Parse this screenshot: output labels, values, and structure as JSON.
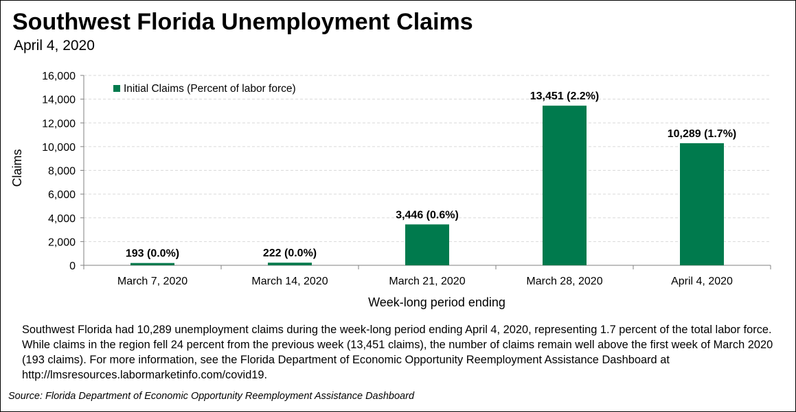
{
  "header": {
    "title": "Southwest Florida Unemployment Claims",
    "subtitle": "April 4, 2020"
  },
  "chart_data": {
    "type": "bar",
    "categories": [
      "March 7, 2020",
      "March 14, 2020",
      "March 21, 2020",
      "March 28, 2020",
      "April 4, 2020"
    ],
    "series": [
      {
        "name": "Initial Claims (Percent of labor force)",
        "values": [
          193,
          222,
          3446,
          13451,
          10289
        ],
        "data_labels": [
          "193 (0.0%)",
          "222 (0.0%)",
          "3,446 (0.6%)",
          "13,451 (2.2%)",
          "10,289 (1.7%)"
        ],
        "color": "#007a4d"
      }
    ],
    "xlabel": "Week-long period ending",
    "ylabel": "Claims",
    "ylim": [
      0,
      16000
    ],
    "yticks": [
      0,
      2000,
      4000,
      6000,
      8000,
      10000,
      12000,
      14000,
      16000
    ],
    "ytick_labels": [
      "0",
      "2,000",
      "4,000",
      "6,000",
      "8,000",
      "10,000",
      "12,000",
      "14,000",
      "16,000"
    ],
    "legend": "top-left",
    "grid": true
  },
  "description": "Southwest Florida had 10,289 unemployment claims during the week-long period ending April 4, 2020, representing 1.7 percent of the total labor force.  While claims in the region fell 24 percent from the previous week (13,451 claims), the number of claims remain well above the first week of March 2020 (193 claims).  For more information, see the Florida Department of Economic Opportunity Reemployment Assistance Dashboard at http://lmsresources.labormarketinfo.com/covid19.",
  "source": "Source:  Florida Department of Economic Opportunity Reemployment Assistance Dashboard"
}
